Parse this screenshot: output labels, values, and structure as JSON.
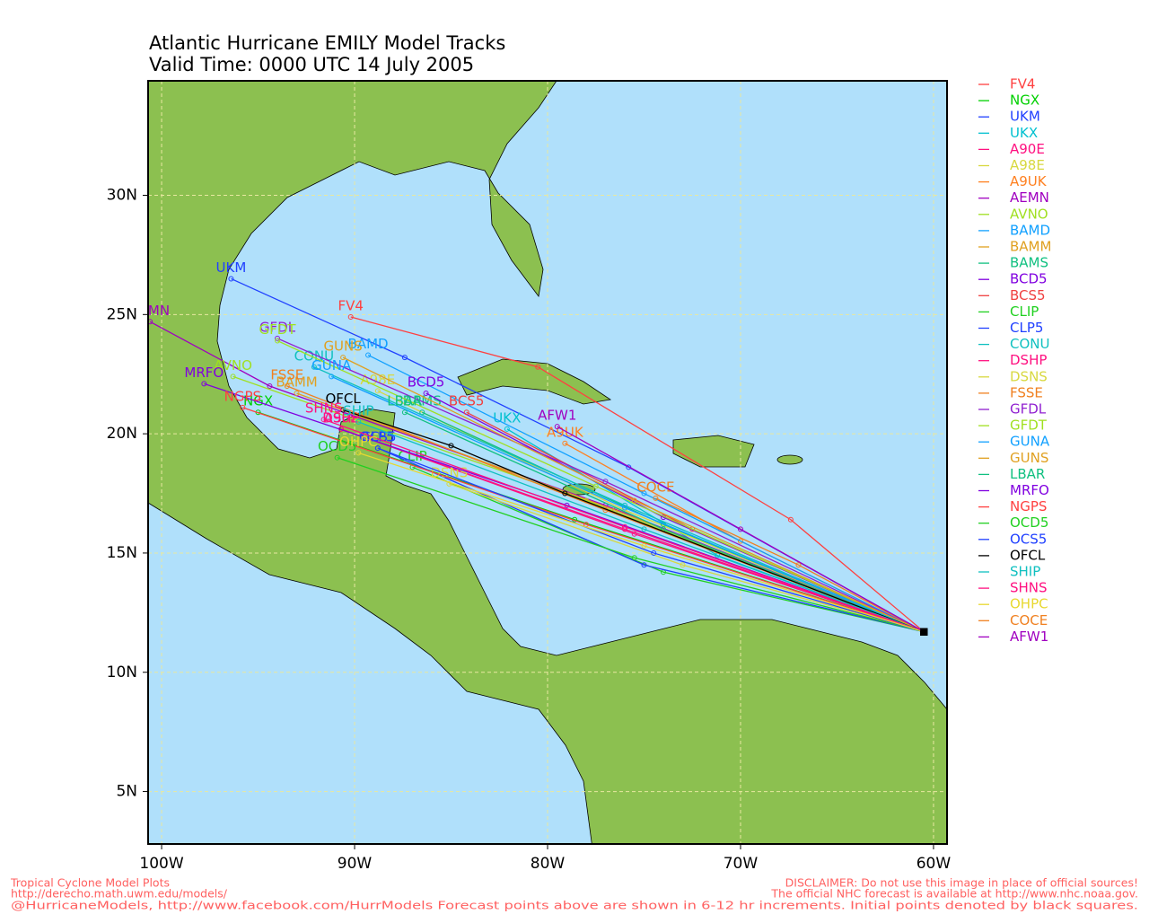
{
  "map": {
    "title": "Atlantic Hurricane EMILY Model Tracks",
    "subtitle": "Valid Time: 0000 UTC 14 July 2005",
    "xlim": [
      -100.7,
      -59.3
    ],
    "ylim": [
      2.8,
      34.8
    ],
    "xticks": [
      {
        "value": -100,
        "label": "100W"
      },
      {
        "value": -90,
        "label": "90W"
      },
      {
        "value": -80,
        "label": "80W"
      },
      {
        "value": -70,
        "label": "70W"
      },
      {
        "value": -60,
        "label": "60W"
      }
    ],
    "yticks": [
      {
        "value": 5,
        "label": "5N"
      },
      {
        "value": 10,
        "label": "10N"
      },
      {
        "value": 15,
        "label": "15N"
      },
      {
        "value": 20,
        "label": "20N"
      },
      {
        "value": 25,
        "label": "25N"
      },
      {
        "value": 30,
        "label": "30N"
      }
    ],
    "grid": true,
    "tracks": [
      {
        "name": "FV4",
        "color": "#ff4040",
        "lon": [
          -60.5,
          -67.4,
          -80.5,
          -90.2
        ],
        "lat": [
          11.7,
          16.4,
          22.8,
          24.9
        ]
      },
      {
        "name": "NGX",
        "color": "#00d000",
        "lon": [
          -60.5,
          -78.6,
          -95.0
        ],
        "lat": [
          11.7,
          16.4,
          20.9
        ]
      },
      {
        "name": "UKM",
        "color": "#2040ff",
        "lon": [
          -60.5,
          -75.8,
          -87.4,
          -96.4
        ],
        "lat": [
          11.7,
          18.6,
          23.2,
          26.5
        ]
      },
      {
        "name": "UKX",
        "color": "#00c0d0",
        "lon": [
          -60.5,
          -71.2,
          -82.1
        ],
        "lat": [
          11.7,
          14.9,
          20.2
        ]
      },
      {
        "name": "A90E",
        "color": "#ff1080",
        "lon": [
          -60.5,
          -76.0,
          -90.7
        ],
        "lat": [
          11.7,
          16.0,
          20.2
        ]
      },
      {
        "name": "A98E",
        "color": "#d8d840",
        "lon": [
          -60.5,
          -76.0,
          -88.8
        ],
        "lat": [
          11.7,
          16.8,
          21.8
        ]
      },
      {
        "name": "A9UK",
        "color": "#ff8020",
        "lon": [
          -60.5,
          -70.0,
          -79.1
        ],
        "lat": [
          11.7,
          15.5,
          19.6
        ]
      },
      {
        "name": "AEMN",
        "color": "#a000c0",
        "lon": [
          -60.5,
          -77.0,
          -94.4,
          -100.6
        ],
        "lat": [
          11.7,
          17.0,
          22.0,
          24.7
        ]
      },
      {
        "name": "AVNO",
        "color": "#a0e020",
        "lon": [
          -60.5,
          -78.0,
          -96.3
        ],
        "lat": [
          11.7,
          17.2,
          22.4
        ]
      },
      {
        "name": "BAMD",
        "color": "#10a0ff",
        "lon": [
          -60.5,
          -75.0,
          -89.3
        ],
        "lat": [
          11.7,
          17.5,
          23.3
        ]
      },
      {
        "name": "BAMM",
        "color": "#e0a020",
        "lon": [
          -60.5,
          -76.5,
          -93.0
        ],
        "lat": [
          11.7,
          16.8,
          21.7
        ]
      },
      {
        "name": "BAMS",
        "color": "#10c080",
        "lon": [
          -60.5,
          -74.0,
          -86.5
        ],
        "lat": [
          11.7,
          16.2,
          20.9
        ]
      },
      {
        "name": "BCD5",
        "color": "#8000e0",
        "lon": [
          -60.5,
          -74.0,
          -86.3
        ],
        "lat": [
          11.7,
          16.5,
          21.7
        ]
      },
      {
        "name": "BCS5",
        "color": "#f04040",
        "lon": [
          -60.5,
          -72.5,
          -84.2
        ],
        "lat": [
          11.7,
          16.0,
          20.9
        ]
      },
      {
        "name": "CLIP",
        "color": "#20d020",
        "lon": [
          -60.5,
          -74.0,
          -87.0
        ],
        "lat": [
          11.7,
          14.2,
          18.6
        ]
      },
      {
        "name": "CLP5",
        "color": "#2040ff",
        "lon": [
          -60.5,
          -75.0,
          -88.8
        ],
        "lat": [
          11.7,
          14.5,
          19.4
        ]
      },
      {
        "name": "CONU",
        "color": "#10c0c0",
        "lon": [
          -60.5,
          -76.0,
          -92.1
        ],
        "lat": [
          11.7,
          17.0,
          22.8
        ]
      },
      {
        "name": "DSHP",
        "color": "#ff1080",
        "lon": [
          -60.5,
          -75.5,
          -90.7
        ],
        "lat": [
          11.7,
          15.8,
          20.2
        ]
      },
      {
        "name": "DSNS",
        "color": "#d8d840",
        "lon": [
          -60.5,
          -73.0,
          -85.1
        ],
        "lat": [
          11.7,
          14.5,
          17.9
        ]
      },
      {
        "name": "FSSE",
        "color": "#f08020",
        "lon": [
          -60.5,
          -77.0,
          -93.5
        ],
        "lat": [
          11.7,
          16.8,
          22.0
        ]
      },
      {
        "name": "GFDL",
        "color": "#9020d0",
        "lon": [
          -60.5,
          -77.0,
          -94.0
        ],
        "lat": [
          11.7,
          18.0,
          24.0
        ]
      },
      {
        "name": "GFDT",
        "color": "#a0e020",
        "lon": [
          -60.5,
          -77.5,
          -94.0
        ],
        "lat": [
          11.7,
          17.8,
          23.9
        ]
      },
      {
        "name": "GUNA",
        "color": "#10a0ff",
        "lon": [
          -60.5,
          -76.0,
          -91.2
        ],
        "lat": [
          11.7,
          16.9,
          22.4
        ]
      },
      {
        "name": "GUNS",
        "color": "#e0a020",
        "lon": [
          -60.5,
          -75.5,
          -90.6
        ],
        "lat": [
          11.7,
          17.2,
          23.2
        ]
      },
      {
        "name": "LBAR",
        "color": "#10c080",
        "lon": [
          -60.5,
          -74.0,
          -87.4
        ],
        "lat": [
          11.7,
          16.0,
          20.9
        ]
      },
      {
        "name": "MRFO",
        "color": "#8000e0",
        "lon": [
          -60.5,
          -79.0,
          -97.8
        ],
        "lat": [
          11.7,
          17.0,
          22.1
        ]
      },
      {
        "name": "NGPS",
        "color": "#ff4040",
        "lon": [
          -60.5,
          -78.0,
          -95.8
        ],
        "lat": [
          11.7,
          16.2,
          21.1
        ]
      },
      {
        "name": "OCD5",
        "color": "#20d020",
        "lon": [
          -60.5,
          -75.5,
          -90.9
        ],
        "lat": [
          11.7,
          14.8,
          19.0
        ]
      },
      {
        "name": "OCS5",
        "color": "#2040ff",
        "lon": [
          -60.5,
          -74.5,
          -88.8
        ],
        "lat": [
          11.7,
          15.0,
          19.4
        ]
      },
      {
        "name": "OFCL",
        "color": "#000000",
        "lon": [
          -60.5,
          -79.1,
          -85.0,
          -90.6
        ],
        "lat": [
          11.7,
          17.5,
          19.5,
          21.0
        ]
      },
      {
        "name": "SHIP",
        "color": "#10c0c0",
        "lon": [
          -60.5,
          -75.0,
          -89.8
        ],
        "lat": [
          11.7,
          16.0,
          20.5
        ]
      },
      {
        "name": "SHNS",
        "color": "#ff1080",
        "lon": [
          -60.5,
          -76.0,
          -91.6
        ],
        "lat": [
          11.7,
          16.1,
          20.6
        ]
      },
      {
        "name": "OHPC",
        "color": "#e8d830",
        "lon": [
          -60.5,
          -75.0,
          -89.8
        ],
        "lat": [
          11.7,
          15.3,
          19.2
        ]
      },
      {
        "name": "COCE",
        "color": "#f08020",
        "lon": [
          -60.5,
          -67.0,
          -74.4
        ],
        "lat": [
          11.7,
          14.5,
          17.3
        ]
      },
      {
        "name": "AFW1",
        "color": "#a000c0",
        "lon": [
          -60.5,
          -70.0,
          -79.5
        ],
        "lat": [
          11.7,
          16.0,
          20.3
        ]
      }
    ],
    "footer_left": [
      "Tropical Cyclone Model Plots",
      "http://derecho.math.uwm.edu/models/"
    ],
    "footer_right": [
      "DISCLAIMER: Do not use this image in place of official sources!",
      "The official NHC forecast is available at http://www.nhc.noaa.gov."
    ],
    "footer_bottom": "@HurricaneModels, http://www.facebook.com/HurrModels  Forecast points above are shown in 6-12 hr increments. Initial points denoted by black squares."
  }
}
